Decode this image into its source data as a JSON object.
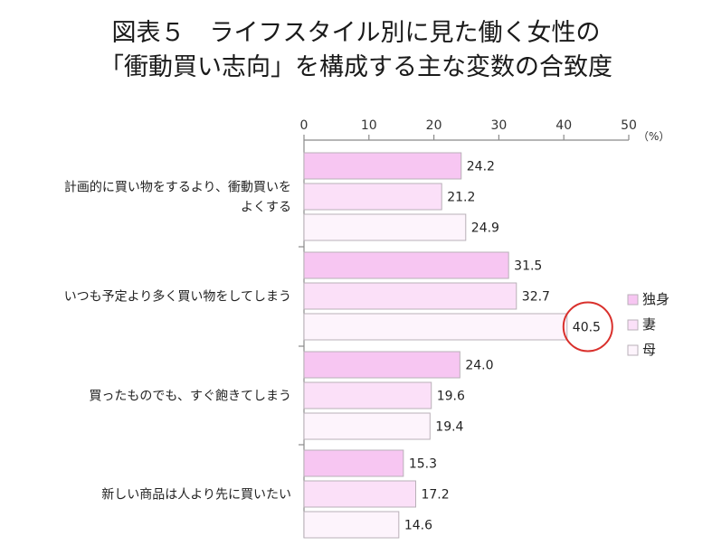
{
  "title": {
    "line1": "図表５　ライフスタイル別に見た働く女性の",
    "line2": "「衝動買い志向」を構成する主な変数の合致度"
  },
  "chart_data": {
    "type": "bar",
    "orientation": "horizontal",
    "unit": "（%）",
    "xlim": [
      0,
      50
    ],
    "ticks": [
      0,
      10,
      20,
      30,
      40,
      50
    ],
    "categories": [
      [
        "計画的に買い物をするより、衝動買いを",
        "よくする"
      ],
      [
        "いつも予定より多く買い物をしてしまう"
      ],
      [
        "買ったものでも、すぐ飽きてしまう"
      ],
      [
        "新しい商品は人より先に買いたい"
      ]
    ],
    "series": [
      {
        "name": "独身",
        "color": "#f7c6f2",
        "values": [
          24.2,
          31.5,
          24.0,
          15.3
        ]
      },
      {
        "name": "妻",
        "color": "#fbe0f8",
        "values": [
          21.2,
          32.7,
          19.6,
          17.2
        ]
      },
      {
        "name": "母",
        "color": "#fdf4fc",
        "values": [
          24.9,
          40.5,
          19.4,
          14.6
        ]
      }
    ],
    "value_labels": [
      [
        "24.2",
        "31.5",
        "24.0",
        "15.3"
      ],
      [
        "21.2",
        "32.7",
        "19.6",
        "17.2"
      ],
      [
        "24.9",
        "40.5",
        "19.4",
        "14.6"
      ]
    ],
    "legend_position": "right",
    "highlight": {
      "series": 2,
      "category": 1,
      "color": "#d9302c"
    },
    "grid": false
  }
}
